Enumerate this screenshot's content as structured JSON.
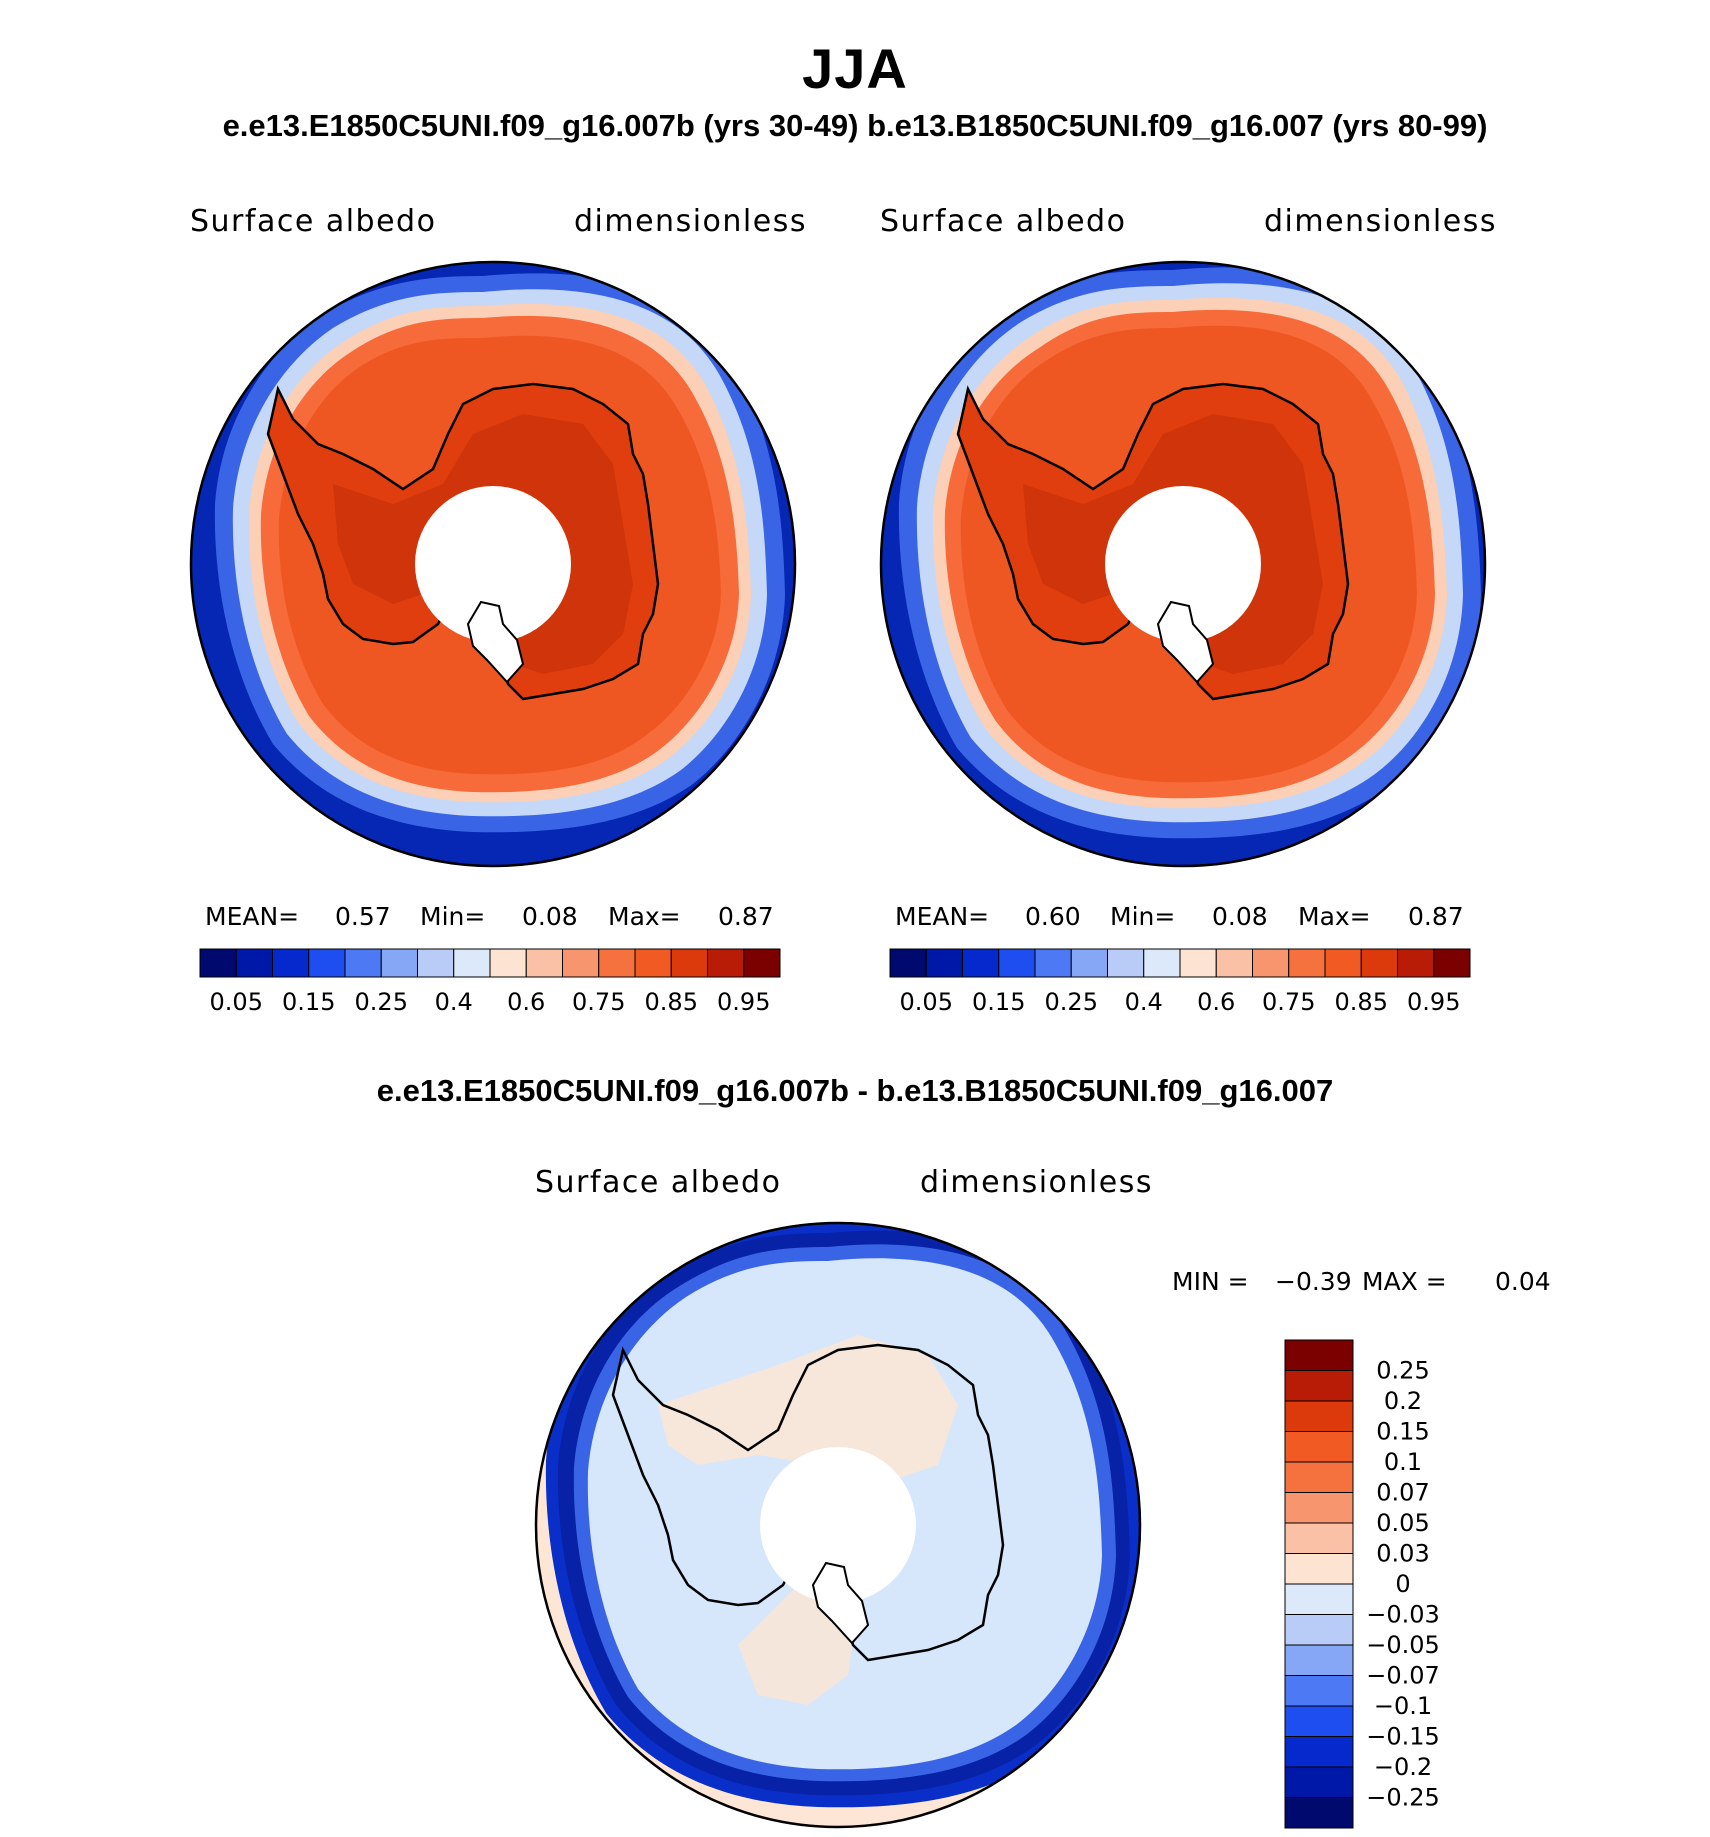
{
  "header": {
    "season": "JJA",
    "subtitle": "e.e13.E1850C5UNI.f09_g16.007b (yrs 30-49)  b.e13.B1850C5UNI.f09_g16.007 (yrs 80-99)"
  },
  "panels": [
    {
      "variable": "Surface albedo",
      "units": "dimensionless",
      "stats": {
        "mean_label": "MEAN=",
        "mean": "0.57",
        "min_label": "Min=",
        "min": "0.08",
        "max_label": "Max=",
        "max": "0.87"
      }
    },
    {
      "variable": "Surface albedo",
      "units": "dimensionless",
      "stats": {
        "mean_label": "MEAN=",
        "mean": "0.60",
        "min_label": "Min=",
        "min": "0.08",
        "max_label": "Max=",
        "max": "0.87"
      }
    }
  ],
  "diff_panel": {
    "title": "e.e13.E1850C5UNI.f09_g16.007b - b.e13.B1850C5UNI.f09_g16.007",
    "variable": "Surface albedo",
    "units": "dimensionless",
    "min_label": "MIN =",
    "min": "−0.39",
    "max_label": "MAX =",
    "max": "0.04"
  },
  "colorbar_horizontal": {
    "tick_labels": [
      "0.05",
      "0.15",
      "0.25",
      "0.4",
      "0.6",
      "0.75",
      "0.85",
      "0.95"
    ],
    "colors": [
      "#000a6e",
      "#0018a8",
      "#0529cc",
      "#1f4ef0",
      "#4d79f5",
      "#86a7f5",
      "#b8ccf7",
      "#dce9fb",
      "#fde3d1",
      "#fac1a6",
      "#f7956f",
      "#f5723f",
      "#f15a22",
      "#dc3a0c",
      "#b81c06",
      "#7b0000"
    ]
  },
  "colorbar_vertical": {
    "tick_labels": [
      "0.25",
      "0.2",
      "0.15",
      "0.1",
      "0.07",
      "0.05",
      "0.03",
      "0",
      "−0.03",
      "−0.05",
      "−0.07",
      "−0.1",
      "−0.15",
      "−0.2",
      "−0.25"
    ],
    "colors": [
      "#7b0000",
      "#b81c06",
      "#dc3a0c",
      "#f15a22",
      "#f5723f",
      "#f7956f",
      "#fac1a6",
      "#fde3d1",
      "#dce9fb",
      "#b8ccf7",
      "#86a7f5",
      "#4d79f5",
      "#1f4ef0",
      "#0529cc",
      "#0018a8",
      "#000a6e"
    ]
  },
  "palette": {
    "ocean": "#0527b4",
    "ocean_deep": "#0a1fa0",
    "ice_edge_blue": "#3a64e6",
    "ice_pale": "#c5d8f8",
    "ice_peach": "#fbd0b6",
    "ice_orange": "#f76a3a",
    "ice_red": "#ef5722",
    "land": "#e03e0e",
    "land_dark": "#d0340a",
    "diff_bg": "#fde6d5",
    "diff_ice": "#d6e6fb",
    "diff_band": "#0a2ec8",
    "diff_band_dark": "#061a8c",
    "hole": "#ffffff"
  }
}
